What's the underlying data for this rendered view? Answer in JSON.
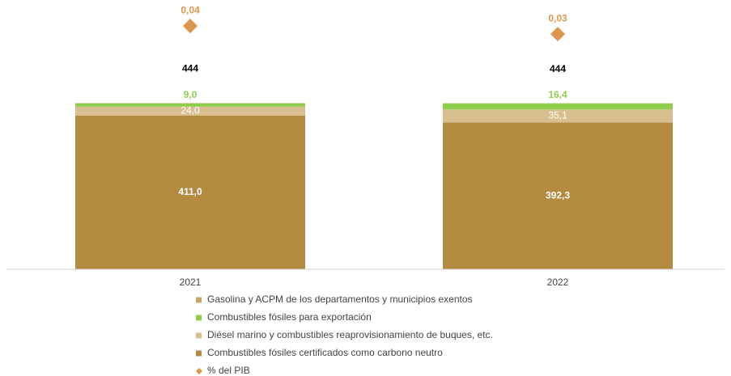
{
  "chart_data": {
    "type": "stacked_bar",
    "categories": [
      "2021",
      "2022"
    ],
    "series": [
      {
        "name": "Combustibles fósiles certificados como carbono neutro",
        "color": "#b38a40",
        "values": [
          411.0,
          392.3
        ],
        "value_labels": [
          "411,0",
          "392,3"
        ]
      },
      {
        "name": "Diésel marino y combustibles reaprovisionamiento de buques, etc.",
        "color": "#d9bf8f",
        "values": [
          24.0,
          35.1
        ],
        "value_labels": [
          "24,0",
          "35,1"
        ]
      },
      {
        "name": "Combustibles fósiles para exportación",
        "color": "#8fce4d",
        "values": [
          9.0,
          16.4
        ],
        "value_labels": [
          "9,0",
          "16,4"
        ]
      },
      {
        "name": "Gasolina y ACPM de los departamentos y municipios exentos",
        "color": "#c9a465",
        "values": [
          0.4,
          0.2
        ]
      },
      {
        "name": "% del PIB",
        "color": "#dd964c",
        "axis": "y2",
        "marker": "diamond",
        "values": [
          0.04,
          0.03
        ],
        "value_labels": [
          "0,04",
          "0,03"
        ]
      }
    ],
    "totals": [
      444,
      444
    ],
    "ylim": [
      0,
      720
    ],
    "y2lim": [
      -0.26,
      0.072
    ]
  }
}
